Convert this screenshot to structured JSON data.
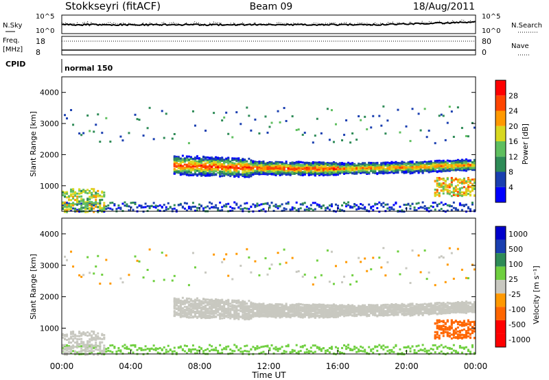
{
  "header": {
    "station": "Stokkseyri (fitACF)",
    "beam": "Beam 09",
    "date": "18/Aug/2011"
  },
  "side_labels": {
    "nsky": "N.Sky",
    "nsearch": "N.Search",
    "freq_top": "Freq.",
    "freq_unit": "[MHz]",
    "nave": "Nave",
    "cpid": "CPID",
    "cpid_value": "normal 150"
  },
  "top_panels": {
    "noise_ticks_left": [
      "10^5",
      "10^0"
    ],
    "noise_ticks_right": [
      "10^5",
      "10^0"
    ],
    "freq_ticks": [
      "18",
      "8"
    ],
    "nave_ticks": [
      "80",
      "0"
    ]
  },
  "colors": {
    "power_scale": [
      "#0000ff",
      "#1a3fb0",
      "#2e8b57",
      "#5fbf5f",
      "#d8d820",
      "#ff9900",
      "#ff4500",
      "#ff0000"
    ],
    "velocity_scale": [
      "#ff0000",
      "#ff6600",
      "#ff9900",
      "#c8c8c0",
      "#c8c8c0",
      "#6fcf3f",
      "#2e8b57",
      "#1a3fb0",
      "#0000cc"
    ],
    "ground_scatter": "#c8c8c0"
  },
  "chart_data": [
    {
      "type": "heatmap",
      "title": "Power",
      "ylabel": "Slant Range [km]",
      "xlabel": "",
      "xlim": [
        0,
        24
      ],
      "ylim": [
        180,
        4500
      ],
      "yticks": [
        1000,
        2000,
        3000,
        4000
      ],
      "colorbar": {
        "label": "Power [dB]",
        "ticks": [
          4,
          8,
          12,
          16,
          20,
          24,
          28
        ],
        "range": [
          0,
          32
        ]
      },
      "features": [
        {
          "name": "main echo band",
          "t_start": 6.5,
          "t_end": 24,
          "range_km": [
            1500,
            2000
          ],
          "peak_power_db": 28
        },
        {
          "name": "early echoes",
          "t_start": 0,
          "t_end": 2.5,
          "range_km": [
            180,
            900
          ],
          "peak_power_db": 20
        },
        {
          "name": "late echoes",
          "t_start": 21.5,
          "t_end": 24,
          "range_km": [
            700,
            1300
          ],
          "peak_power_db": 24
        }
      ]
    },
    {
      "type": "heatmap",
      "title": "Velocity",
      "ylabel": "Slant Range [km]",
      "xlabel": "Time UT",
      "xlim": [
        0,
        24
      ],
      "ylim": [
        180,
        4500
      ],
      "yticks": [
        1000,
        2000,
        3000,
        4000
      ],
      "xticks": [
        "00:00",
        "04:00",
        "08:00",
        "12:00",
        "16:00",
        "20:00",
        "00:00"
      ],
      "colorbar": {
        "label": "Velocity [m s⁻¹]",
        "ticks": [
          1000,
          500,
          100,
          25,
          -25,
          -100,
          -500,
          -1000
        ]
      },
      "features": [
        {
          "name": "ground scatter band",
          "t_start": 6.5,
          "t_end": 23,
          "range_km": [
            1500,
            2000
          ],
          "velocity_ms": 0
        },
        {
          "name": "receding echoes",
          "t_start": 22,
          "t_end": 24,
          "range_km": [
            700,
            1300
          ],
          "velocity_ms": -500
        }
      ]
    }
  ]
}
